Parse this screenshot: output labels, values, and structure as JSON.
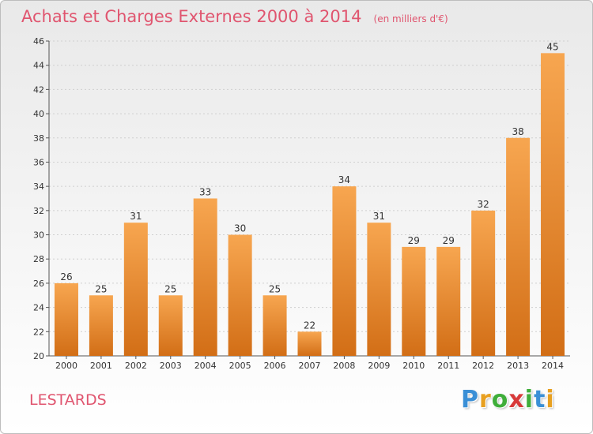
{
  "header": {
    "title": "Achats et Charges Externes 2000 à 2014",
    "unit": "(en milliers d'€)"
  },
  "footer": {
    "commune": "LESTARDS",
    "brand_letters": [
      {
        "ch": "P",
        "color": "#3a8fd6"
      },
      {
        "ch": "r",
        "color": "#e8a020"
      },
      {
        "ch": "o",
        "color": "#3fae3a"
      },
      {
        "ch": "x",
        "color": "#d83a3a"
      },
      {
        "ch": "i",
        "color": "#3fae3a"
      },
      {
        "ch": "t",
        "color": "#3a8fd6"
      },
      {
        "ch": "i",
        "color": "#e8a020"
      }
    ]
  },
  "colors": {
    "bar_top": "#f7a650",
    "bar_bottom": "#d26e16",
    "title": "#e0556f",
    "grid": "#cfcfcf"
  },
  "chart_data": {
    "type": "bar",
    "title": "Achats et Charges Externes 2000 à 2014",
    "subtitle": "(en milliers d'€)",
    "categories": [
      "2000",
      "2001",
      "2002",
      "2003",
      "2004",
      "2005",
      "2006",
      "2007",
      "2008",
      "2009",
      "2010",
      "2011",
      "2012",
      "2013",
      "2014"
    ],
    "values": [
      26,
      25,
      31,
      25,
      33,
      30,
      25,
      22,
      34,
      31,
      29,
      29,
      32,
      38,
      45
    ],
    "ylim": [
      20,
      46
    ],
    "yticks": [
      20,
      22,
      24,
      26,
      28,
      30,
      32,
      34,
      36,
      38,
      40,
      42,
      44,
      46
    ],
    "grid": true,
    "legend": "none"
  }
}
